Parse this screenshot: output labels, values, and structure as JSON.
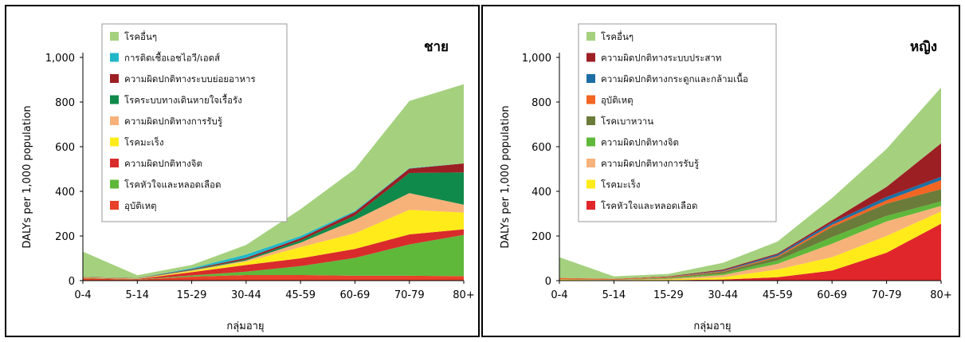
{
  "chart_data": [
    {
      "type": "area",
      "stacked": true,
      "title": "ชาย",
      "xlabel": "กลุ่มอายุ",
      "ylabel": "DALYs per 1,000 population",
      "ylim": [
        0,
        1000
      ],
      "yticks": [
        "0",
        "200",
        "400",
        "600",
        "800",
        "1,000"
      ],
      "categories": [
        "0-4",
        "5-14",
        "15-29",
        "30-44",
        "45-59",
        "60-69",
        "70-79",
        "80+"
      ],
      "legend_position": "top-left",
      "series": [
        {
          "name": "อุบัติเหตุ",
          "color": "#e8412a",
          "values": [
            10,
            4,
            18,
            25,
            25,
            22,
            22,
            20
          ]
        },
        {
          "name": "โรคหัวใจและหลอดเลือด",
          "color": "#5fb83a",
          "values": [
            2,
            1,
            5,
            15,
            40,
            80,
            140,
            185
          ]
        },
        {
          "name": "ความผิดปกติทางจิต",
          "color": "#d92b2b",
          "values": [
            2,
            2,
            15,
            30,
            35,
            40,
            45,
            25
          ]
        },
        {
          "name": "โรคมะเร็ง",
          "color": "#ffeb1a",
          "values": [
            1,
            1,
            5,
            15,
            50,
            70,
            110,
            75
          ]
        },
        {
          "name": "ความผิดปกติทางการรับรู้",
          "color": "#f7b27a",
          "values": [
            1,
            1,
            3,
            5,
            20,
            60,
            75,
            35
          ]
        },
        {
          "name": "โรคระบบทางเดินหายใจเรื้อรัง",
          "color": "#0f8a4a",
          "values": [
            1,
            1,
            2,
            5,
            10,
            20,
            90,
            145
          ]
        },
        {
          "name": "ความผิดปกติทางระบบย่อยอาหาร",
          "color": "#9c1f24",
          "values": [
            1,
            1,
            3,
            7,
            10,
            15,
            20,
            40
          ]
        },
        {
          "name": "การติดเชื้อเอชไอวี/เอดส์",
          "color": "#22b7c8",
          "values": [
            0,
            0,
            5,
            15,
            10,
            5,
            2,
            0
          ]
        },
        {
          "name": "โรคอื่นๆ",
          "color": "#a5d17f",
          "values": [
            112,
            13,
            14,
            43,
            120,
            188,
            301,
            355
          ]
        }
      ]
    },
    {
      "type": "area",
      "stacked": true,
      "title": "หญิง",
      "xlabel": "กลุ่มอายุ",
      "ylabel": "DALYs per 1,000 population",
      "ylim": [
        0,
        1000
      ],
      "yticks": [
        "0",
        "200",
        "400",
        "600",
        "800",
        "1,000"
      ],
      "categories": [
        "0-4",
        "5-14",
        "15-29",
        "30-44",
        "45-59",
        "60-69",
        "70-79",
        "80+"
      ],
      "legend_position": "top-left",
      "series": [
        {
          "name": "โรคหัวใจและหลอดเลือด",
          "color": "#e0262b",
          "values": [
            2,
            1,
            2,
            5,
            15,
            45,
            125,
            255
          ]
        },
        {
          "name": "โรคมะเร็ง",
          "color": "#ffeb1a",
          "values": [
            2,
            1,
            3,
            10,
            35,
            60,
            75,
            55
          ]
        },
        {
          "name": "ความผิดปกติทางการรับรู้",
          "color": "#f7b27a",
          "values": [
            1,
            1,
            3,
            10,
            25,
            60,
            65,
            25
          ]
        },
        {
          "name": "ความผิดปกติทางจิต",
          "color": "#5fb83a",
          "values": [
            1,
            1,
            3,
            7,
            15,
            30,
            25,
            20
          ]
        },
        {
          "name": "โรคเบาหวาน",
          "color": "#6b7b3a",
          "values": [
            0,
            0,
            2,
            7,
            15,
            45,
            55,
            55
          ]
        },
        {
          "name": "อุบัติเหตุ",
          "color": "#f26522",
          "values": [
            5,
            3,
            3,
            3,
            5,
            10,
            15,
            40
          ]
        },
        {
          "name": "ความผิดปกติทางกระดูกและกล้ามเนื้อ",
          "color": "#1c6ea4",
          "values": [
            0,
            0,
            1,
            3,
            7,
            10,
            15,
            15
          ]
        },
        {
          "name": "ความผิดปกติทางระบบประสาท",
          "color": "#9c1f24",
          "values": [
            1,
            1,
            2,
            5,
            5,
            10,
            45,
            150
          ]
        },
        {
          "name": "โรคอื่นๆ",
          "color": "#a5d17f",
          "values": [
            93,
            11,
            11,
            30,
            53,
            100,
            170,
            250
          ]
        }
      ]
    }
  ]
}
